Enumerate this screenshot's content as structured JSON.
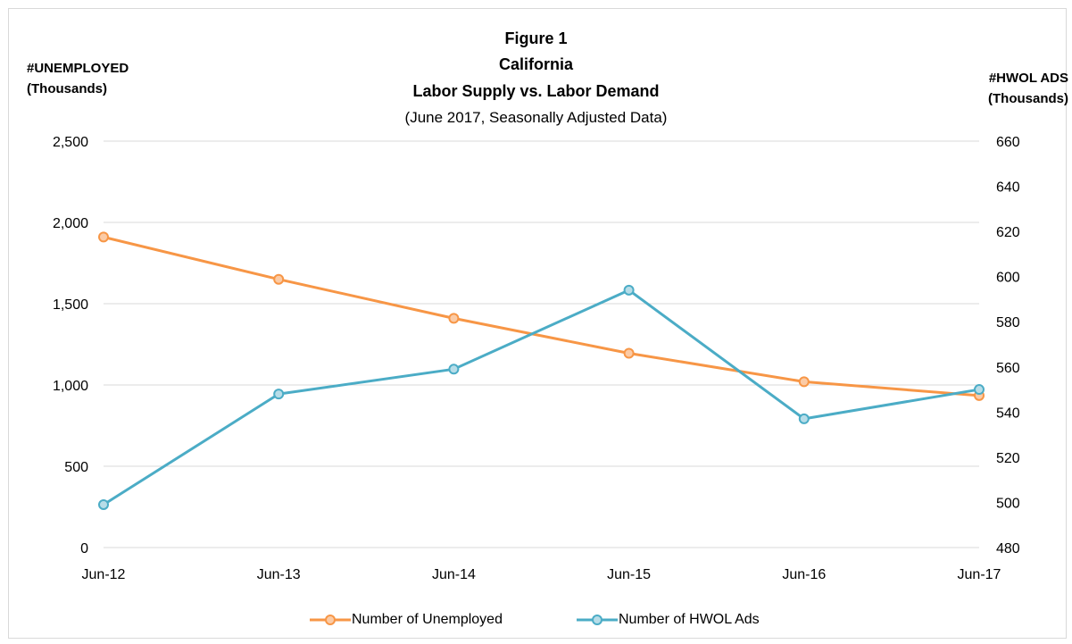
{
  "titles": {
    "line1": "Figure 1",
    "line2": "California",
    "line3": "Labor Supply vs. Labor Demand",
    "subtitle": "(June 2017, Seasonally Adjusted Data)"
  },
  "left_axis_title": {
    "line1": "#UNEMPLOYED",
    "line2": "(Thousands)"
  },
  "right_axis_title": {
    "line1": "#HWOL ADS",
    "line2": "(Thousands)"
  },
  "colors": {
    "unemployed": "#f79646",
    "hwol": "#4bacc6",
    "grid": "#d9d9d9",
    "frame": "#d9d9d9"
  },
  "chart_data": {
    "type": "line",
    "title": "Figure 1 California Labor Supply vs. Labor Demand",
    "subtitle": "(June 2017, Seasonally Adjusted Data)",
    "categories": [
      "Jun-12",
      "Jun-13",
      "Jun-14",
      "Jun-15",
      "Jun-16",
      "Jun-17"
    ],
    "y_left": {
      "label": "#UNEMPLOYED (Thousands)",
      "lim": [
        0,
        2500
      ],
      "ticks": [
        0,
        500,
        1000,
        1500,
        2000,
        2500
      ],
      "tick_labels": [
        "0",
        "500",
        "1,000",
        "1,500",
        "2,000",
        "2,500"
      ]
    },
    "y_right": {
      "label": "#HWOL ADS (Thousands)",
      "lim": [
        480,
        660
      ],
      "ticks": [
        480,
        500,
        520,
        540,
        560,
        580,
        600,
        620,
        640,
        660
      ],
      "tick_labels": [
        "480",
        "500",
        "520",
        "540",
        "560",
        "580",
        "600",
        "620",
        "640",
        "660"
      ]
    },
    "grid": true,
    "legend_position": "bottom",
    "series": [
      {
        "name": "Number of Unemployed",
        "axis": "left",
        "values": [
          1910,
          1650,
          1410,
          1195,
          1020,
          935
        ]
      },
      {
        "name": "Number of HWOL Ads",
        "axis": "right",
        "values": [
          499,
          548,
          559,
          594,
          537,
          550
        ]
      }
    ]
  }
}
